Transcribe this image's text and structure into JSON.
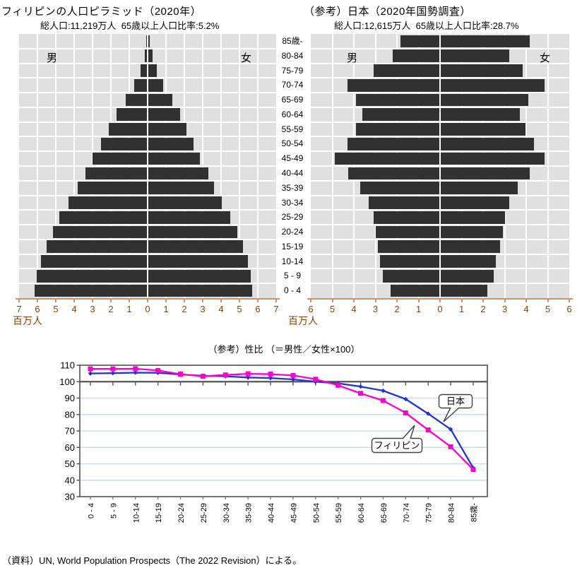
{
  "page": {
    "footer": "（資料）UN, World Population Prospects（The 2022 Revision）による。"
  },
  "colors": {
    "bar": "#313131",
    "plot_bg": "#e0e0e0",
    "grid_white": "#ffffff",
    "axis_line": "#d2906b",
    "axis_text": "#8b4000",
    "japan_blue": "#2233cc",
    "philippines_magenta": "#ff00cc",
    "grid_blue": "#c9ddf2",
    "ref_line": "#555555",
    "chart_border": "#737373"
  },
  "chart_data": [
    {
      "type": "bar",
      "name": "philippines-population-pyramid",
      "title": "フィリピンの人口ピラミッド（2020年）",
      "subtitle": "総人口:11,219万人  65歳以上人口比率:5.2%",
      "orientation": "population-pyramid",
      "xlabel": "百万人",
      "xlim": [
        0,
        7
      ],
      "categories": [
        "0 - 4",
        "5 - 9",
        "10-14",
        "15-19",
        "20-24",
        "25-29",
        "30-34",
        "35-39",
        "40-44",
        "45-49",
        "50-54",
        "55-59",
        "60-64",
        "65-69",
        "70-74",
        "75-79",
        "80-84",
        "85歳-"
      ],
      "series": [
        {
          "name": "男",
          "values": [
            6.15,
            6.05,
            5.8,
            5.5,
            5.15,
            4.8,
            4.3,
            3.8,
            3.4,
            3.0,
            2.55,
            2.1,
            1.7,
            1.2,
            0.75,
            0.4,
            0.15,
            0.06
          ]
        },
        {
          "name": "女",
          "values": [
            5.7,
            5.6,
            5.45,
            5.2,
            4.9,
            4.5,
            4.05,
            3.6,
            3.3,
            2.85,
            2.5,
            2.1,
            1.75,
            1.35,
            0.85,
            0.5,
            0.27,
            0.1
          ]
        }
      ]
    },
    {
      "type": "bar",
      "name": "japan-population-pyramid",
      "title": "（参考）日本（2020年国勢調査）",
      "subtitle": "総人口:12,615万人  65歳以上人口比率:28.7%",
      "orientation": "population-pyramid",
      "xlabel": "百万人",
      "xlim": [
        0,
        6
      ],
      "categories": [
        "0 - 4",
        "5 - 9",
        "10-14",
        "15-19",
        "20-24",
        "25-29",
        "30-34",
        "35-39",
        "40-44",
        "45-49",
        "50-54",
        "55-59",
        "60-64",
        "65-69",
        "70-74",
        "75-79",
        "80-84",
        "85歳-"
      ],
      "series": [
        {
          "name": "男",
          "values": [
            2.3,
            2.65,
            2.8,
            2.9,
            3.0,
            3.1,
            3.3,
            3.7,
            4.25,
            4.9,
            4.3,
            3.9,
            3.6,
            3.9,
            4.3,
            3.1,
            2.2,
            1.85
          ]
        },
        {
          "name": "女",
          "values": [
            2.2,
            2.5,
            2.6,
            2.8,
            2.9,
            3.0,
            3.2,
            3.6,
            4.15,
            4.85,
            4.35,
            3.95,
            3.7,
            4.1,
            4.85,
            3.85,
            3.2,
            4.15
          ]
        }
      ]
    },
    {
      "type": "line",
      "name": "sex-ratio-by-age",
      "title": "（参考）性比 （＝男性／女性×100）",
      "ylim": [
        30,
        110
      ],
      "ytick_step": 10,
      "ref_line": 100,
      "legend_position": "callouts-on-lines",
      "categories": [
        "0 - 4",
        "5 - 9",
        "10-14",
        "15-19",
        "20-24",
        "25-29",
        "30-34",
        "35-39",
        "40-44",
        "45-49",
        "50-54",
        "55-59",
        "60-64",
        "65-69",
        "70-74",
        "75-79",
        "80-84",
        "85歳-"
      ],
      "series": [
        {
          "name": "日本",
          "color": "#2233cc",
          "marker": "diamond",
          "values": [
            105.0,
            105.2,
            105.5,
            105.4,
            104.4,
            103.6,
            103.3,
            102.5,
            102.2,
            101.4,
            100.0,
            99.0,
            97.0,
            94.5,
            89.4,
            80.5,
            71.0,
            47.5
          ]
        },
        {
          "name": "フィリピン",
          "color": "#ff00cc",
          "marker": "square",
          "values": [
            107.8,
            107.8,
            107.9,
            106.8,
            104.6,
            103.3,
            104.1,
            104.8,
            104.6,
            103.8,
            101.5,
            97.8,
            92.9,
            88.5,
            81.0,
            70.6,
            60.4,
            46.5
          ]
        }
      ]
    }
  ]
}
